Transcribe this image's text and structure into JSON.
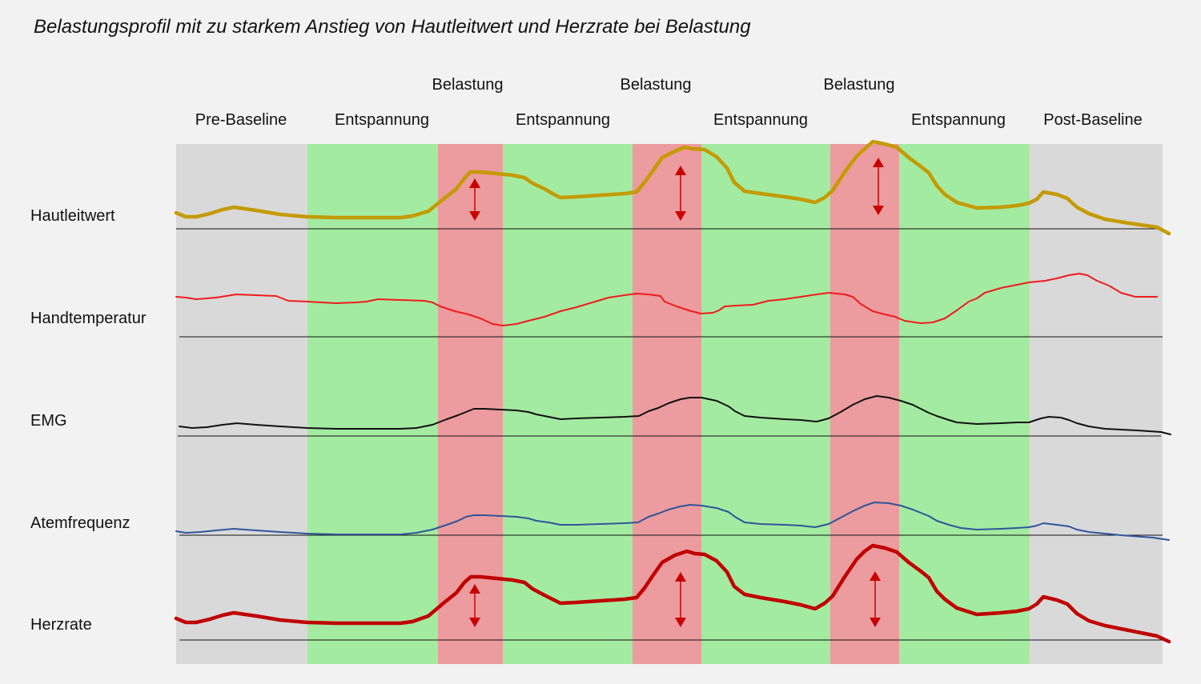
{
  "title": "Belastungsprofil mit zu starkem Anstieg von Hautleitwert und Herzrate bei Belastung",
  "colors": {
    "baseline_band": "#d9d9d9",
    "relax_band": "#a3eba0",
    "stress_band": "#ec9b9e",
    "arrow": "#c80000"
  },
  "phases": [
    {
      "type": "baseline",
      "label": "Pre-Baseline",
      "label_row": "lower"
    },
    {
      "type": "relax",
      "label": "Entspannung",
      "label_row": "lower"
    },
    {
      "type": "stress",
      "label": "Belastung",
      "label_row": "upper"
    },
    {
      "type": "relax",
      "label": "Entspannung",
      "label_row": "lower"
    },
    {
      "type": "stress",
      "label": "Belastung",
      "label_row": "upper"
    },
    {
      "type": "relax",
      "label": "Entspannung",
      "label_row": "lower"
    },
    {
      "type": "stress",
      "label": "Belastung",
      "label_row": "upper"
    },
    {
      "type": "relax",
      "label": "Entspannung",
      "label_row": "lower"
    },
    {
      "type": "baseline",
      "label": "Post-Baseline",
      "label_row": "lower"
    }
  ],
  "signals": [
    {
      "name": "Hautleitwert",
      "color": "#c49a00",
      "emphasis": "thick",
      "stress_arrows": true
    },
    {
      "name": "Handtemperatur",
      "color": "#ee1c1c",
      "emphasis": "thin",
      "stress_arrows": false
    },
    {
      "name": "EMG",
      "color": "#111111",
      "emphasis": "thin",
      "stress_arrows": false
    },
    {
      "name": "Atemfrequenz",
      "color": "#2e559a",
      "emphasis": "thin",
      "stress_arrows": false
    },
    {
      "name": "Herzrate",
      "color": "#c00000",
      "emphasis": "thick",
      "stress_arrows": true
    }
  ]
}
